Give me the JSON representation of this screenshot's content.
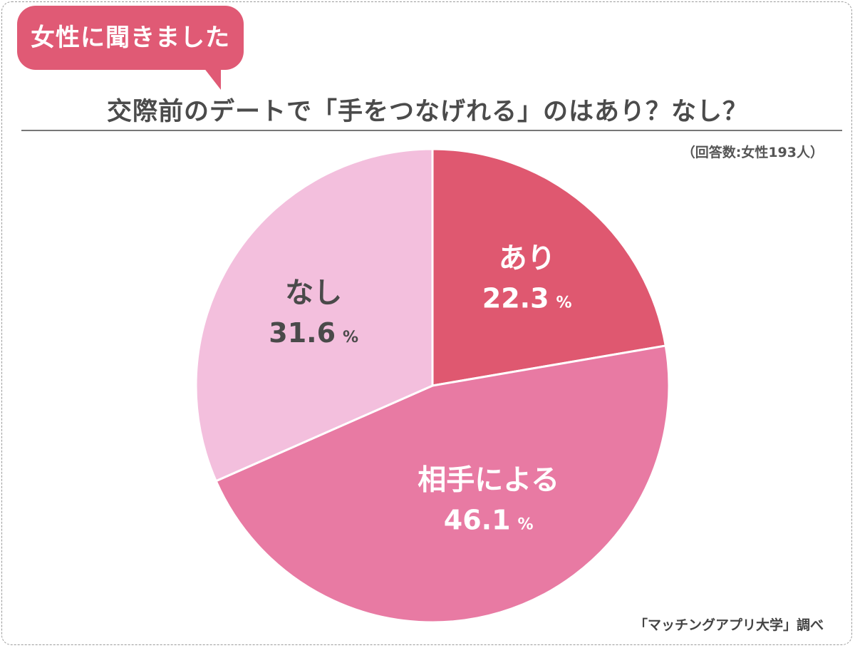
{
  "badge": {
    "text": "女性に聞きました"
  },
  "respondents": "（回答数:女性193人）",
  "source": "「マッチングアプリ大学」調べ",
  "chart_data": {
    "type": "pie",
    "title": "交際前のデートで「手をつなげれる」のはあり？なし？",
    "unit": "%",
    "start_angle_deg": 0,
    "direction": "clockwise",
    "slices": [
      {
        "label": "あり",
        "value": 22.3,
        "display": "22.3",
        "color": "#df5870",
        "text_color": "#ffffff"
      },
      {
        "label": "相手による",
        "value": 46.1,
        "display": "46.1",
        "color": "#e87aa3",
        "text_color": "#ffffff"
      },
      {
        "label": "なし",
        "value": 31.6,
        "display": "31.6",
        "color": "#f3bfdd",
        "text_color": "#4a4a4a"
      }
    ]
  }
}
